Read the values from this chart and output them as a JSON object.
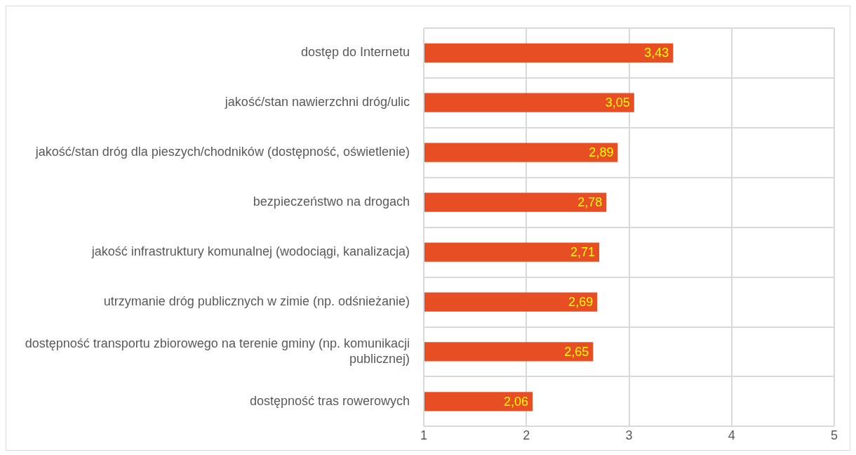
{
  "chart_data": {
    "type": "bar",
    "orientation": "horizontal",
    "categories": [
      "dostęp do Internetu",
      "jakość/stan nawierzchni dróg/ulic",
      "jakość/stan dróg dla pieszych/chodników (dostępność, oświetlenie)",
      "bezpieczeństwo na drogach",
      "jakość infrastruktury komunalnej (wodociągi, kanalizacja)",
      "utrzymanie dróg publicznych w zimie (np. odśnieżanie)",
      "dostępność transportu zbiorowego na terenie gminy (np. komunikacji publicznej)",
      "dostępność tras rowerowych"
    ],
    "values": [
      3.43,
      3.05,
      2.89,
      2.78,
      2.71,
      2.69,
      2.65,
      2.06
    ],
    "value_labels": [
      "3,43",
      "3,05",
      "2,89",
      "2,78",
      "2,71",
      "2,69",
      "2,65",
      "2,06"
    ],
    "color": "#e84e23",
    "xlim": [
      1,
      5
    ],
    "xticks": [
      1,
      2,
      3,
      4,
      5
    ],
    "grid": true,
    "legend": false
  }
}
